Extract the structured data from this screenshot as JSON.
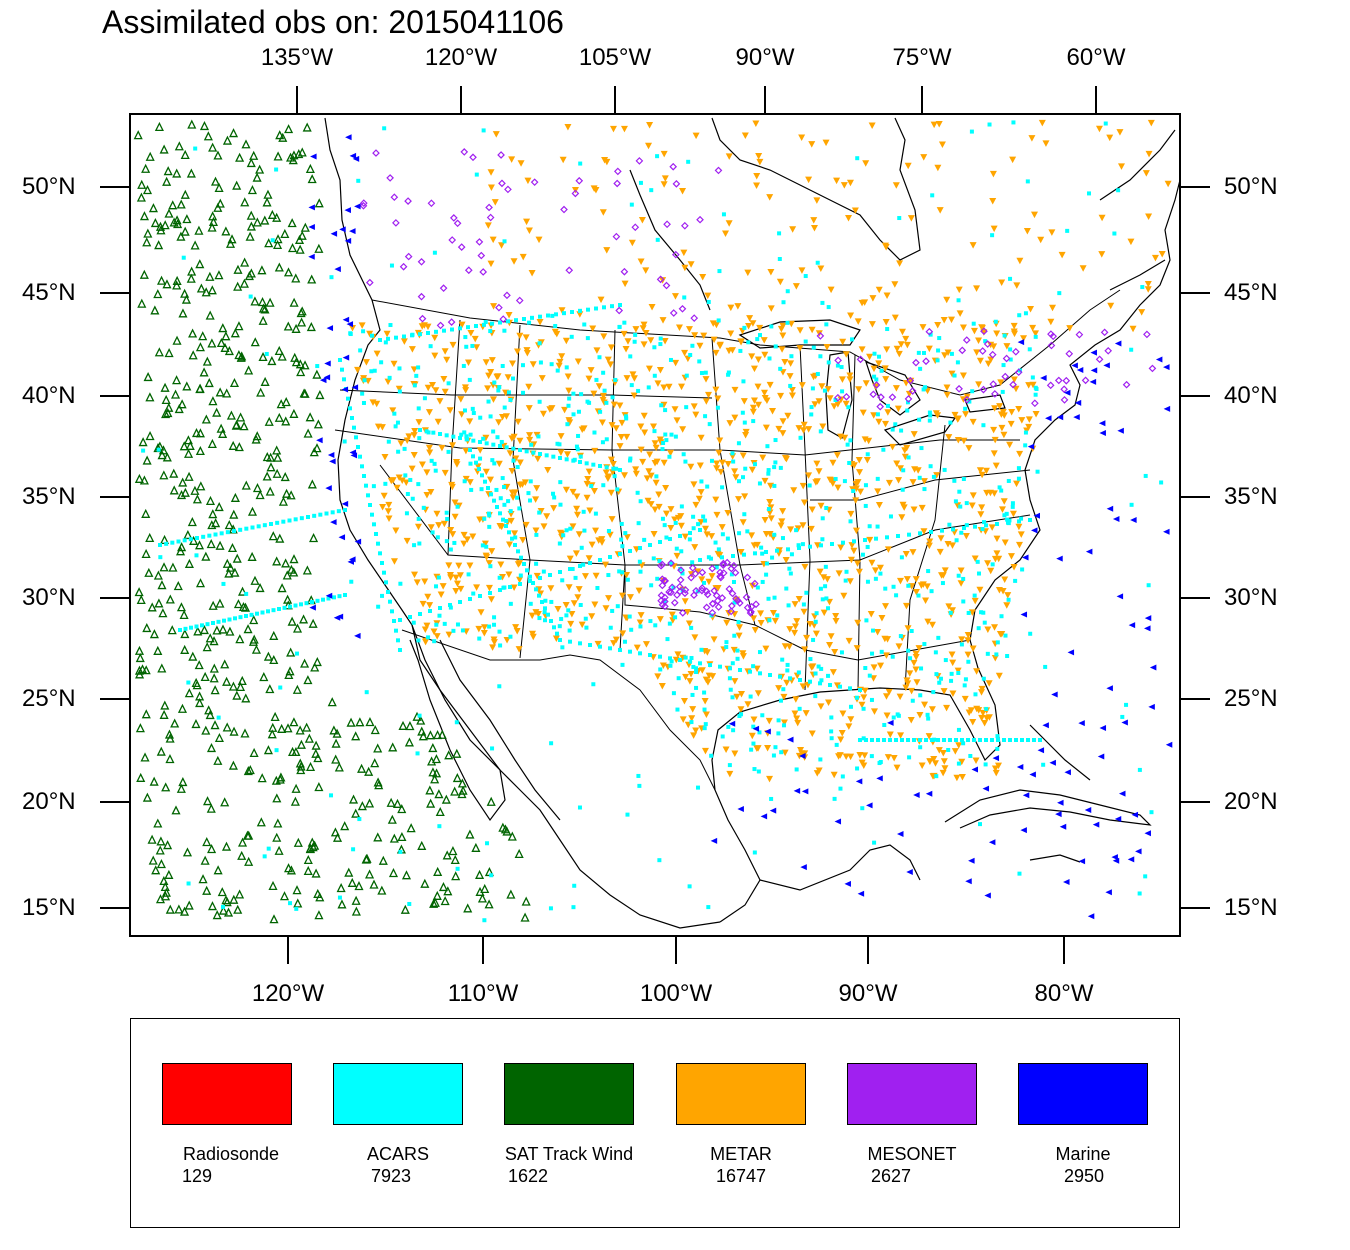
{
  "title": "Assimilated obs on: 2015041106",
  "axes": {
    "top_lon_labels": [
      "135°W",
      "120°W",
      "105°W",
      "90°W",
      "75°W",
      "60°W"
    ],
    "bottom_lon_labels": [
      "120°W",
      "110°W",
      "100°W",
      "90°W",
      "80°W"
    ],
    "left_lat_labels": [
      "50°N",
      "45°N",
      "40°N",
      "35°N",
      "30°N",
      "25°N",
      "20°N",
      "15°N"
    ],
    "right_lat_labels": [
      "50°N",
      "45°N",
      "40°N",
      "35°N",
      "30°N",
      "25°N",
      "20°N",
      "15°N"
    ]
  },
  "legend": [
    {
      "name": "Radiosonde",
      "count": "129",
      "color": "#ff0000",
      "symbol": "circle"
    },
    {
      "name": "ACARS",
      "count": "7923",
      "color": "#00ffff",
      "symbol": "square"
    },
    {
      "name": "SAT Track Wind",
      "count": "1622",
      "color": "#006400",
      "symbol": "triangle-up"
    },
    {
      "name": "METAR",
      "count": "16747",
      "color": "#ffa500",
      "symbol": "triangle-down"
    },
    {
      "name": "MESONET",
      "count": "2627",
      "color": "#a020f0",
      "symbol": "diamond"
    },
    {
      "name": "Marine",
      "count": "2950",
      "color": "#0000ff",
      "symbol": "triangle-left"
    }
  ]
}
